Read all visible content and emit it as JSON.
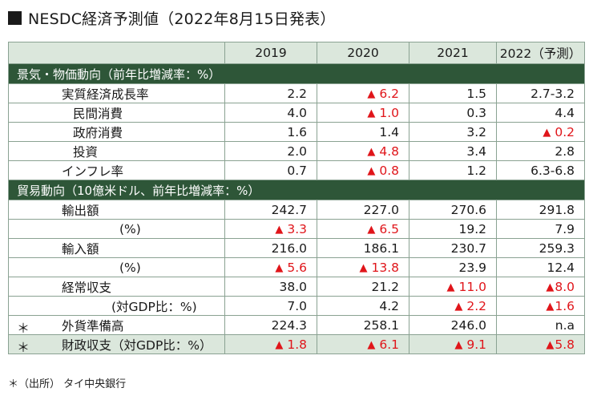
{
  "title": "NESDC経済予測値（2022年8月15日発表）",
  "columns": [
    "2019",
    "2020",
    "2021",
    "2022（予測）"
  ],
  "sections": [
    {
      "header": "景気・物価動向（前年比増減率：%）",
      "rows": [
        {
          "label": "実質経済成長率",
          "indent": "l1",
          "values": [
            {
              "text": "2.2"
            },
            {
              "text": "6.2",
              "neg": true
            },
            {
              "text": "1.5"
            },
            {
              "text": "2.7-3.2"
            }
          ]
        },
        {
          "label": "民間消費",
          "indent": "l2",
          "values": [
            {
              "text": "4.0"
            },
            {
              "text": "1.0",
              "neg": true
            },
            {
              "text": "0.3"
            },
            {
              "text": "4.4"
            }
          ]
        },
        {
          "label": "政府消費",
          "indent": "l2",
          "values": [
            {
              "text": "1.6"
            },
            {
              "text": "1.4"
            },
            {
              "text": "3.2"
            },
            {
              "text": "0.2",
              "neg": true
            }
          ]
        },
        {
          "label": "投資",
          "indent": "l2",
          "values": [
            {
              "text": "2.0"
            },
            {
              "text": "4.8",
              "neg": true
            },
            {
              "text": "3.4"
            },
            {
              "text": "2.8"
            }
          ]
        },
        {
          "label": "インフレ率",
          "indent": "l1",
          "values": [
            {
              "text": "0.7"
            },
            {
              "text": "0.8",
              "neg": true
            },
            {
              "text": "1.2"
            },
            {
              "text": "6.3-6.8"
            }
          ]
        }
      ]
    },
    {
      "header": "貿易動向（10億米ドル、前年比増減率：%）",
      "rows": [
        {
          "label": "輸出額",
          "indent": "l1",
          "values": [
            {
              "text": "242.7"
            },
            {
              "text": "227.0"
            },
            {
              "text": "270.6"
            },
            {
              "text": "291.8"
            }
          ]
        },
        {
          "label": "(%)",
          "indent": "l3",
          "values": [
            {
              "text": "3.3",
              "neg": true
            },
            {
              "text": "6.5",
              "neg": true
            },
            {
              "text": "19.2"
            },
            {
              "text": "7.9"
            }
          ]
        },
        {
          "label": "輸入額",
          "indent": "l1",
          "values": [
            {
              "text": "216.0"
            },
            {
              "text": "186.1"
            },
            {
              "text": "230.7"
            },
            {
              "text": "259.3"
            }
          ]
        },
        {
          "label": "(%)",
          "indent": "l3",
          "values": [
            {
              "text": "5.6",
              "neg": true
            },
            {
              "text": "13.8",
              "neg": true
            },
            {
              "text": "23.9"
            },
            {
              "text": "12.4"
            }
          ]
        },
        {
          "label": "経常収支",
          "indent": "l1",
          "values": [
            {
              "text": "38.0"
            },
            {
              "text": "21.2"
            },
            {
              "text": "11.0",
              "neg": true
            },
            {
              "text": "8.0",
              "neg": true,
              "tight": true
            }
          ]
        },
        {
          "label": "(対GDP比：%)",
          "indent": "l4",
          "values": [
            {
              "text": "7.0"
            },
            {
              "text": "4.2"
            },
            {
              "text": "2.2",
              "neg": true
            },
            {
              "text": "1.6",
              "neg": true,
              "tight": true
            }
          ]
        },
        {
          "label": "外貨準備高",
          "indent": "l1",
          "asterisk": "＊",
          "values": [
            {
              "text": "224.3"
            },
            {
              "text": "258.1"
            },
            {
              "text": "246.0"
            },
            {
              "text": "n.a"
            }
          ]
        },
        {
          "label": "財政収支（対GDP比：%）",
          "indent": "l1",
          "asterisk": "＊",
          "highlight": true,
          "values": [
            {
              "text": "1.8",
              "neg": true
            },
            {
              "text": "6.1",
              "neg": true
            },
            {
              "text": "9.1",
              "neg": true
            },
            {
              "text": "5.8",
              "neg": true,
              "tight": true
            }
          ]
        }
      ]
    }
  ],
  "neg_marker": "▲",
  "footnote": "＊（出所） タイ中央銀行",
  "colors": {
    "section_bg": "#2e5638",
    "header_bg": "#dbe7dc",
    "negative": "#e0151a",
    "border": "#8aa292"
  }
}
